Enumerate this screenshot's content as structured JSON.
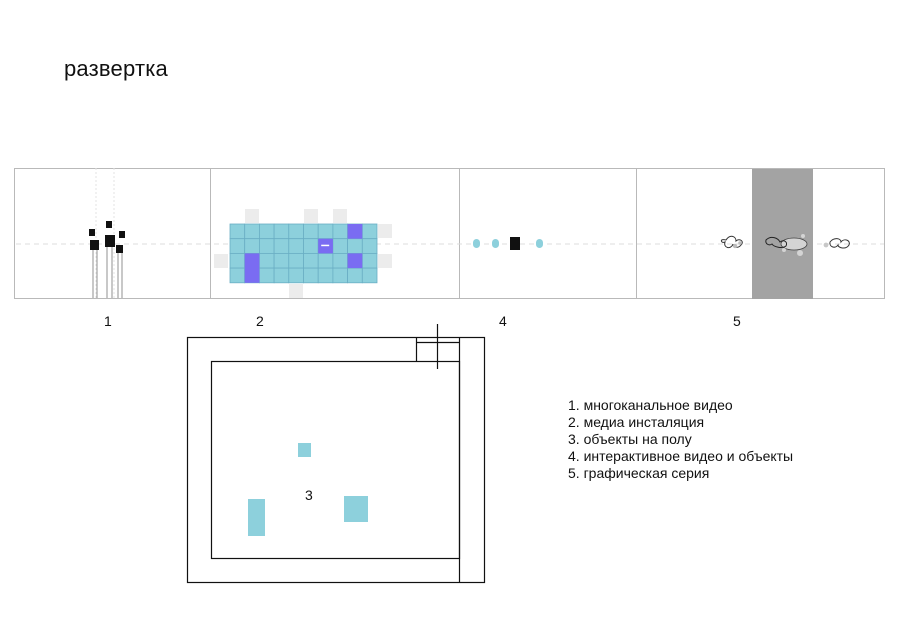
{
  "title": "развертка",
  "section_numbers": [
    "1",
    "2",
    "4",
    "5"
  ],
  "plan_number": "3",
  "legend": [
    "1. многоканальное видео",
    "2. медиа инсталяция",
    "3. объекты на полу",
    "4. интерактивное видео и объекты",
    "5. графическая серия"
  ],
  "colors": {
    "cyan": "#8dd0dc",
    "violet": "#7a6cf2",
    "light_gray": "#ececec",
    "gray_panel": "#a3a3a3",
    "line": "#b9b9b9",
    "black": "#111111"
  }
}
